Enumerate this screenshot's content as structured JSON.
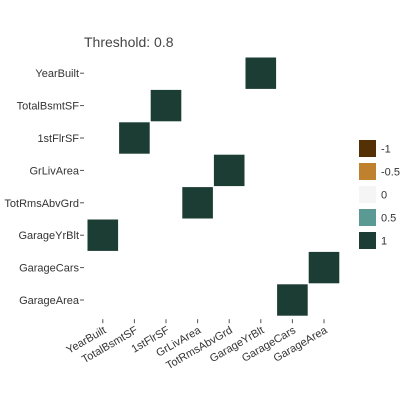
{
  "chart_data": {
    "type": "heatmap",
    "title": "Threshold: 0.8",
    "xlabel": "",
    "ylabel": "",
    "x_categories": [
      "YearBuilt",
      "TotalBsmtSF",
      "1stFlrSF",
      "GrLivArea",
      "TotRmsAbvGrd",
      "GarageYrBlt",
      "GarageCars",
      "GarageArea"
    ],
    "y_categories": [
      "YearBuilt",
      "TotalBsmtSF",
      "1stFlrSF",
      "GrLivArea",
      "TotRmsAbvGrd",
      "GarageYrBlt",
      "GarageCars",
      "GarageArea"
    ],
    "cells": [
      {
        "x": "GarageYrBlt",
        "y": "YearBuilt",
        "value": 1
      },
      {
        "x": "1stFlrSF",
        "y": "TotalBsmtSF",
        "value": 1
      },
      {
        "x": "TotalBsmtSF",
        "y": "1stFlrSF",
        "value": 1
      },
      {
        "x": "TotRmsAbvGrd",
        "y": "GrLivArea",
        "value": 1
      },
      {
        "x": "GrLivArea",
        "y": "TotRmsAbvGrd",
        "value": 1
      },
      {
        "x": "YearBuilt",
        "y": "GarageYrBlt",
        "value": 1
      },
      {
        "x": "GarageArea",
        "y": "GarageCars",
        "value": 1
      },
      {
        "x": "GarageCars",
        "y": "GarageArea",
        "value": 1
      }
    ],
    "color_scale": {
      "stops": [
        {
          "value": -1,
          "color": "#543005"
        },
        {
          "value": -0.5,
          "color": "#bf812d"
        },
        {
          "value": 0,
          "color": "#f5f5f5"
        },
        {
          "value": 0.5,
          "color": "#5a9a92"
        },
        {
          "value": 1,
          "color": "#1b3d33"
        }
      ]
    },
    "legend": {
      "position": "right",
      "labels": [
        "-1",
        "-0.5",
        "0",
        "0.5",
        "1"
      ]
    },
    "grid": false
  }
}
